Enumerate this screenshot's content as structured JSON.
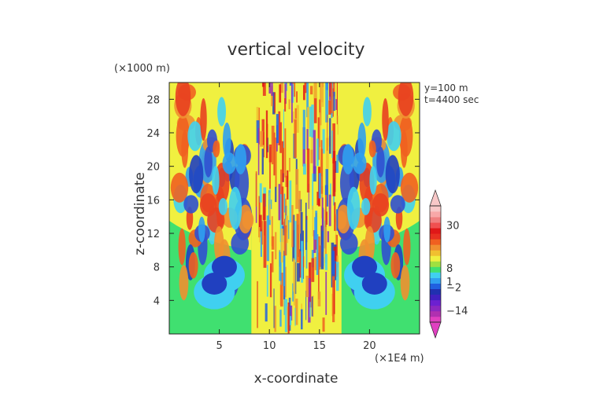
{
  "chart_data": {
    "type": "heatmap",
    "title": "vertical velocity",
    "xlabel": "x-coordinate",
    "ylabel": "z-coordinate",
    "x_unit": "(×1E4 m)",
    "y_unit": "(×1000 m)",
    "annotations": [
      "y=100 m",
      "t=4400 sec"
    ],
    "xlim": [
      0,
      25
    ],
    "ylim": [
      0,
      30
    ],
    "x_ticks": [
      5,
      10,
      15,
      20
    ],
    "y_ticks": [
      4,
      8,
      12,
      16,
      20,
      24,
      28
    ],
    "colorbar": {
      "min": -20,
      "max": 40,
      "tick_values": [
        30,
        8,
        1,
        -2,
        -14
      ],
      "tick_labels": [
        "30",
        "8",
        "1",
        "−2",
        "−14"
      ],
      "colors": [
        "#e040c0",
        "#b030b0",
        "#8c28c0",
        "#6c20d0",
        "#4020c0",
        "#2030b0",
        "#2060e0",
        "#30a0f0",
        "#40d0f0",
        "#40e070",
        "#a0e040",
        "#f0f040",
        "#f0c030",
        "#f09030",
        "#f06020",
        "#e83020",
        "#e01818",
        "#f05050",
        "#f08080",
        "#f8a8a8",
        "#f8c8c8"
      ]
    },
    "field_description_colors": {
      "background_far": "#40e070",
      "background_near": "#f0f040",
      "positive": "#f07020",
      "negative": "#2040c0"
    }
  }
}
